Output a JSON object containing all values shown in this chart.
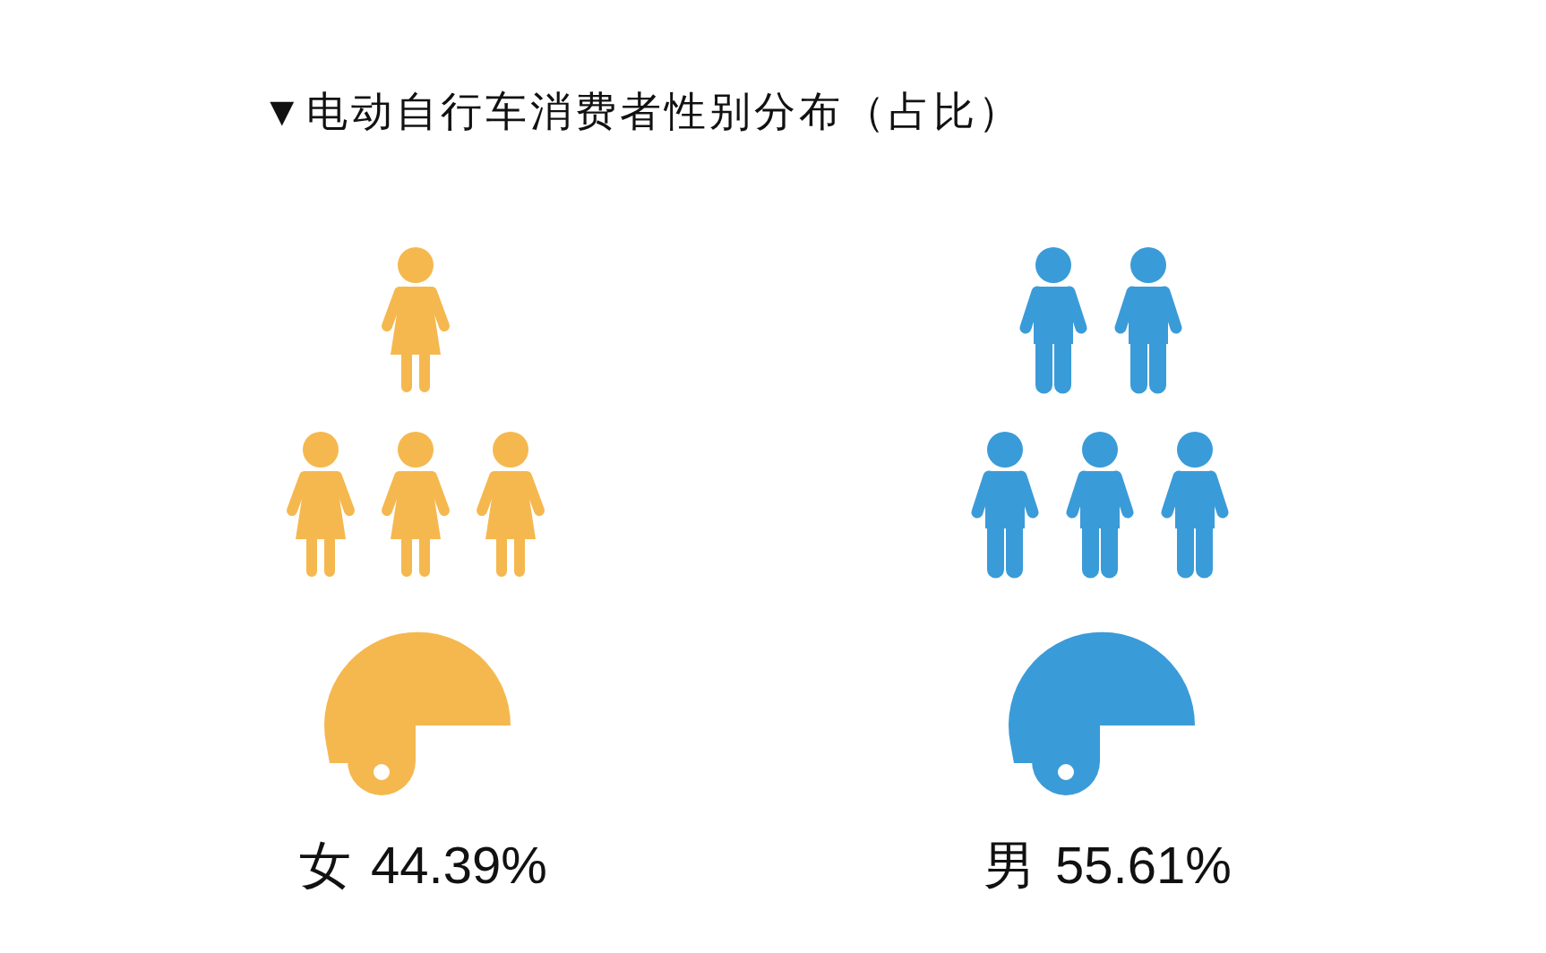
{
  "chart_data": {
    "type": "other",
    "title": "▼电动自行车消费者性别分布（占比）",
    "categories": [
      "女",
      "男"
    ],
    "values": [
      44.39,
      55.61
    ],
    "value_labels": [
      "44.39%",
      "55.61%"
    ],
    "colors": [
      "#f5b84f",
      "#3a9bd9"
    ]
  }
}
